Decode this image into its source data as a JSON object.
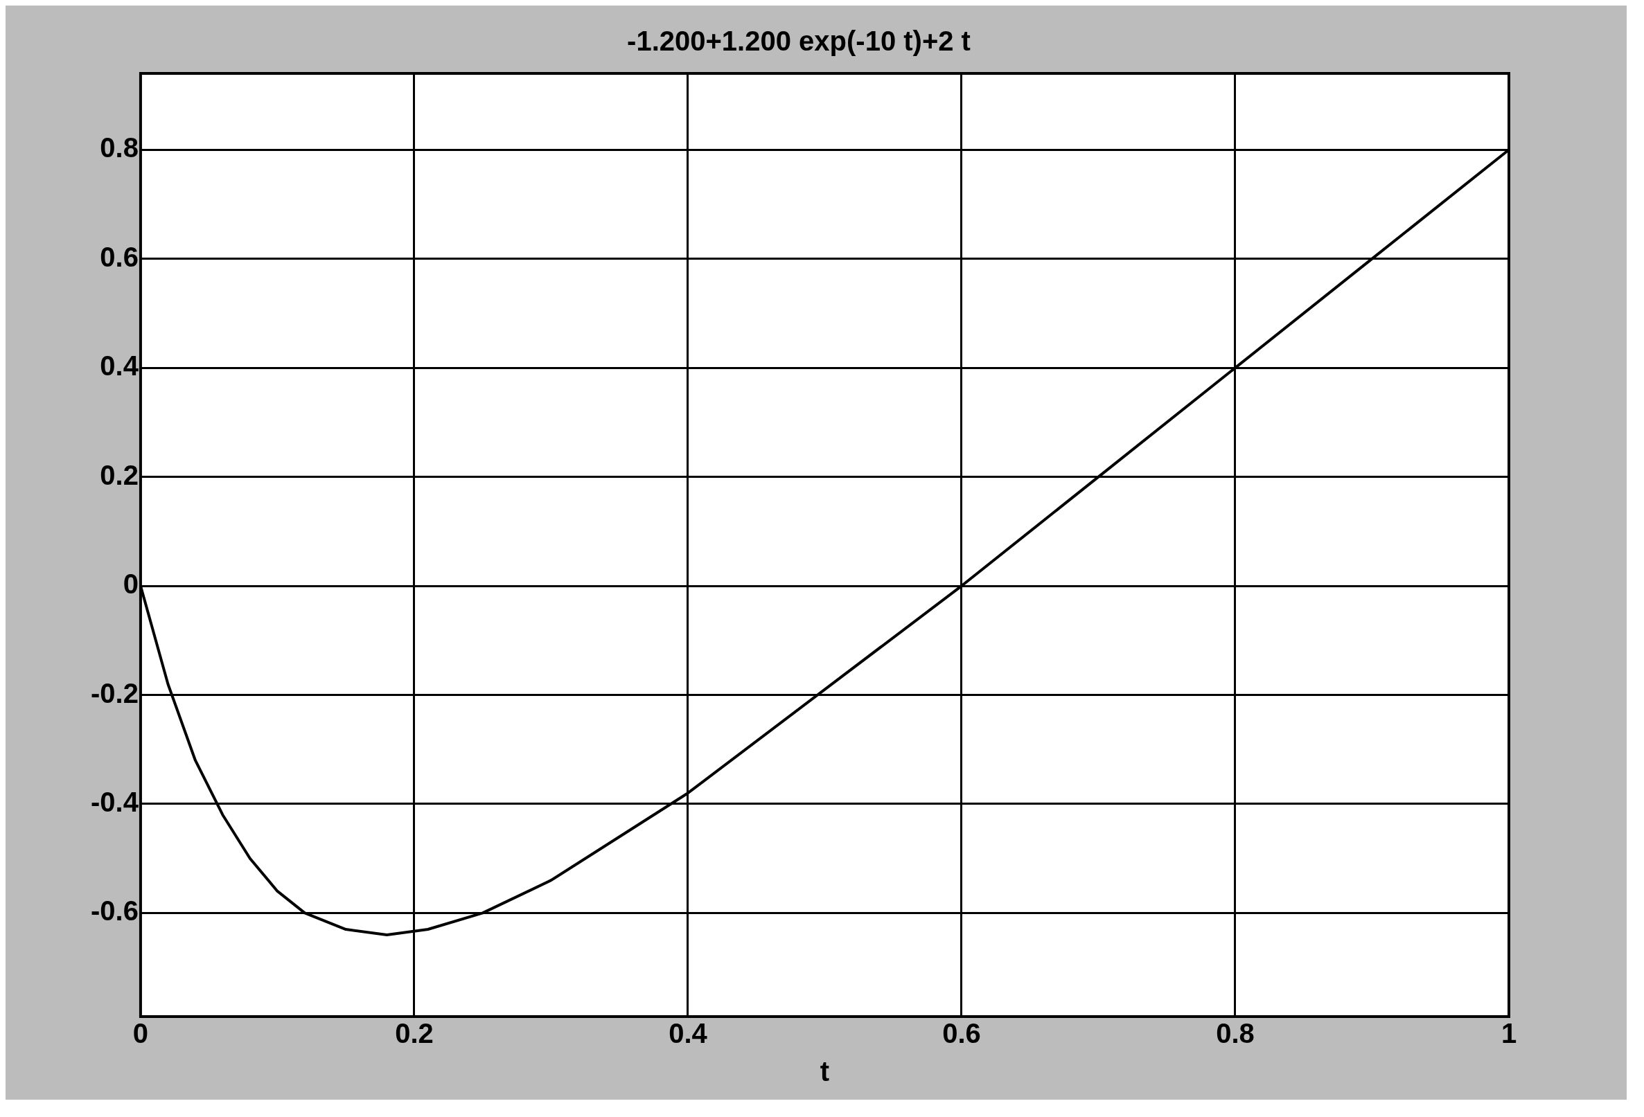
{
  "chart_data": {
    "type": "line",
    "title": "-1.200+1.200 exp(-10 t)+2 t",
    "xlabel": "t",
    "series": [
      {
        "color": "#000000",
        "x": [
          0,
          0.02,
          0.04,
          0.06,
          0.08,
          0.1,
          0.12,
          0.15,
          0.18,
          0.21,
          0.25,
          0.3,
          0.35,
          0.4,
          0.5,
          0.6,
          0.7,
          0.8,
          0.9,
          1
        ],
        "values": [
          0,
          -0.18,
          -0.32,
          -0.42,
          -0.5,
          -0.56,
          -0.6,
          -0.63,
          -0.64,
          -0.63,
          -0.6,
          -0.54,
          -0.46,
          -0.38,
          -0.19,
          0,
          0.2,
          0.4,
          0.6,
          0.8
        ]
      }
    ],
    "xlim": [
      0,
      1
    ],
    "xticks": [
      0,
      0.2,
      0.4,
      0.6,
      0.8,
      1
    ],
    "ylim": [
      -0.79,
      0.94
    ],
    "yticks": [
      -0.6,
      -0.4,
      -0.2,
      0,
      0.2,
      0.4,
      0.6,
      0.8
    ],
    "grid": true,
    "line_style": "solid",
    "marker": "none",
    "legend": false
  }
}
